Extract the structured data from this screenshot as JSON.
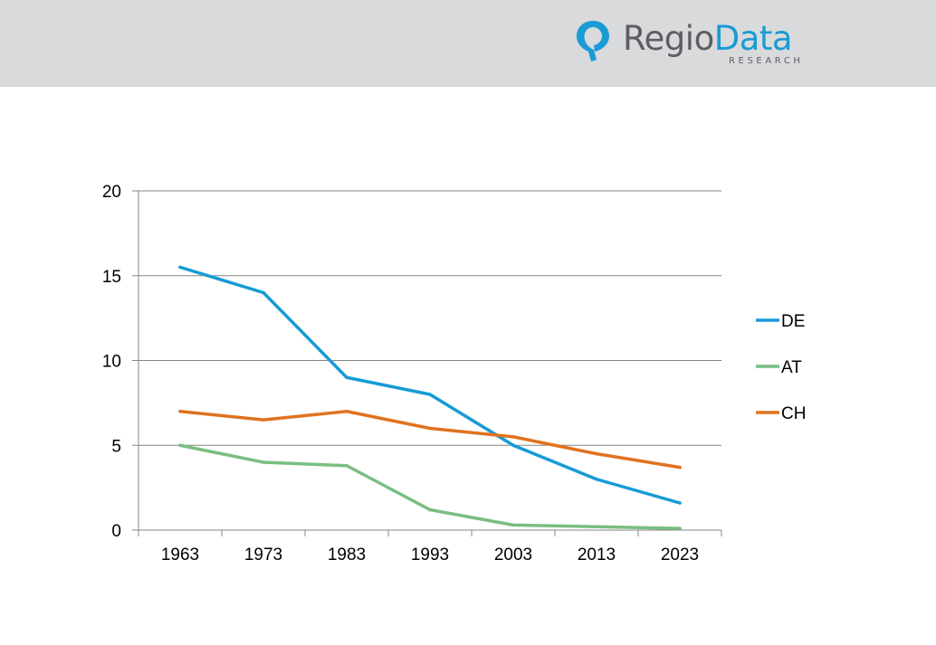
{
  "brand": {
    "name_part1": "Regio",
    "name_part2": "Data",
    "subtitle": "RESEARCH",
    "colors": {
      "gray": "#5d5e62",
      "blue": "#199bd5"
    }
  },
  "chart_data": {
    "type": "line",
    "x": [
      "1963",
      "1973",
      "1983",
      "1993",
      "2003",
      "2013",
      "2023"
    ],
    "series": [
      {
        "name": "DE",
        "color": "#169bd5",
        "values": [
          15.5,
          14,
          9,
          8,
          5,
          3,
          1.6
        ]
      },
      {
        "name": "AT",
        "color": "#79be81",
        "values": [
          5,
          4,
          3.8,
          1.2,
          0.3,
          0.2,
          0.1
        ]
      },
      {
        "name": "CH",
        "color": "#e0721f",
        "values": [
          7,
          6.5,
          7,
          6,
          5.5,
          4.5,
          3.7
        ]
      }
    ],
    "ylim": [
      0,
      20
    ],
    "yticks": [
      0,
      5,
      10,
      15,
      20
    ],
    "grid": true,
    "legend": "right"
  }
}
